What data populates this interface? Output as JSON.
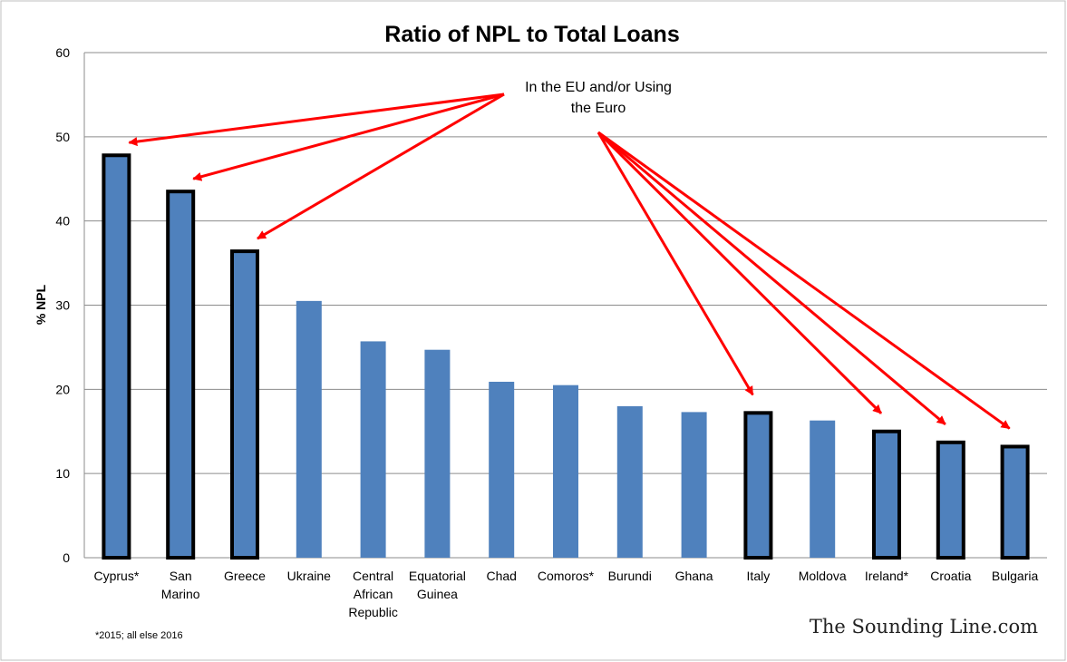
{
  "chart_data": {
    "type": "bar",
    "title": "Ratio of NPL to Total Loans",
    "ylabel": "% NPL",
    "xlabel": "",
    "ylim": [
      0,
      60
    ],
    "yticks": [
      0,
      10,
      20,
      30,
      40,
      50,
      60
    ],
    "grid": true,
    "categories": [
      "Cyprus*",
      "San Marino",
      "Greece",
      "Ukraine",
      "Central African Republic",
      "Equatorial Guinea",
      "Chad",
      "Comoros*",
      "Burundi",
      "Ghana",
      "Italy",
      "Moldova",
      "Ireland*",
      "Croatia",
      "Bulgaria"
    ],
    "values": [
      47.8,
      43.5,
      36.4,
      30.5,
      25.7,
      24.7,
      20.9,
      20.5,
      18.0,
      17.3,
      17.2,
      16.3,
      15.0,
      13.7,
      13.2
    ],
    "highlighted": [
      true,
      true,
      true,
      false,
      false,
      false,
      false,
      false,
      false,
      false,
      true,
      false,
      true,
      true,
      true
    ],
    "bar_color": "#4f81bd",
    "highlight_outline_color": "#000000",
    "annotation": {
      "text_lines": [
        "In the EU and/or Using",
        "the Euro"
      ],
      "arrow_color": "#ff0000"
    },
    "footnote": "*2015; all else 2016",
    "source_credit": "The Sounding Line.com"
  }
}
